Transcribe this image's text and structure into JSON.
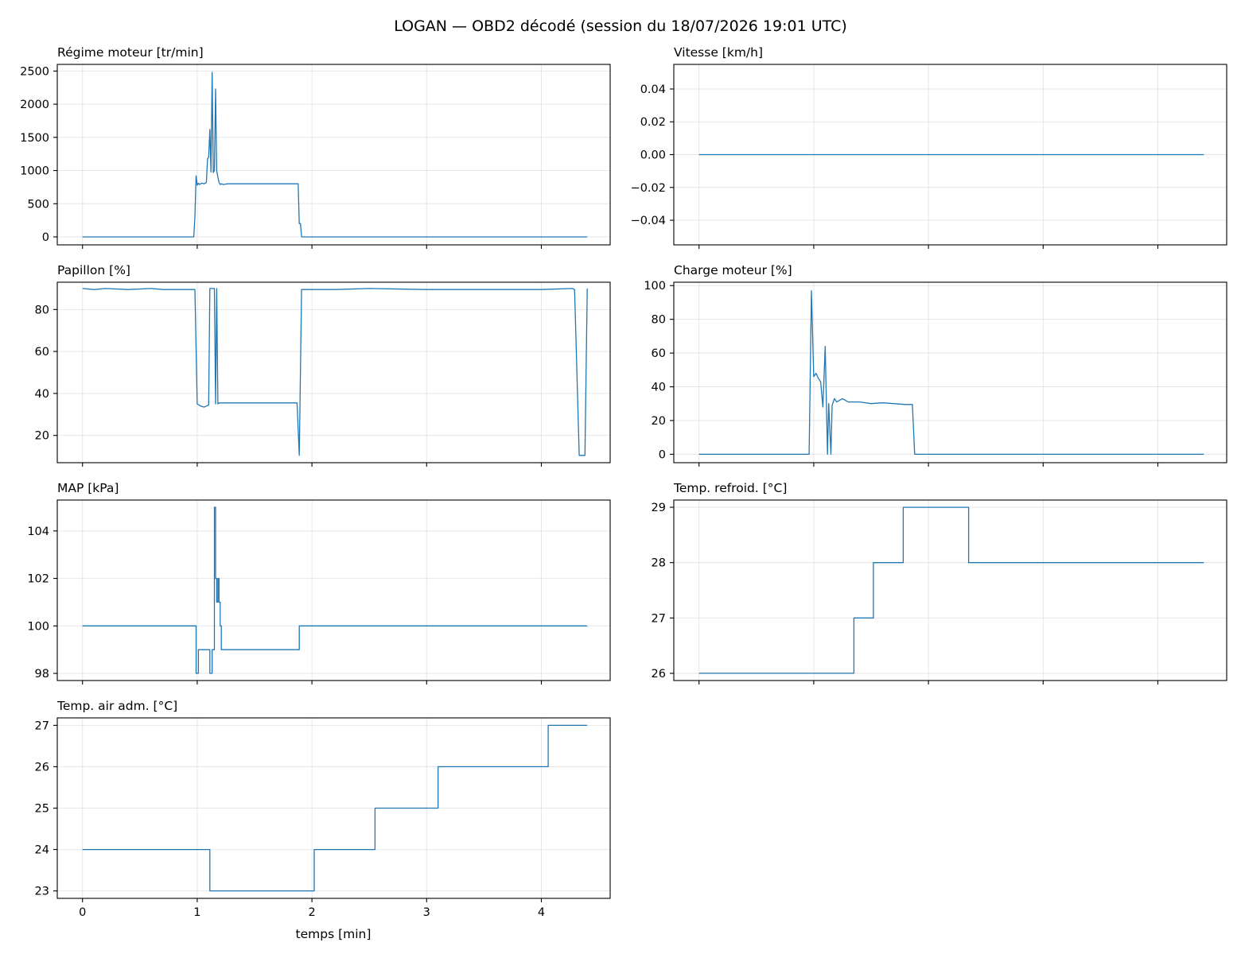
{
  "figure": {
    "title": "LOGAN — OBD2 décodé (session du 18/07/2026 19:01 UTC)",
    "xlabel": "temps [min]",
    "line_color": "#1f77b4"
  },
  "chart_data": [
    {
      "id": "rpm",
      "type": "line",
      "title": "Régime moteur [tr/min]",
      "xlim": [
        -0.22,
        4.6
      ],
      "ylim": [
        -120,
        2600
      ],
      "xticks": [
        0,
        1,
        2,
        3,
        4
      ],
      "show_x_ticklabels": false,
      "yticks": [
        0,
        500,
        1000,
        1500,
        2000,
        2500
      ],
      "x": [
        0,
        0.97,
        0.98,
        0.99,
        1.0,
        1.01,
        1.02,
        1.04,
        1.06,
        1.08,
        1.09,
        1.1,
        1.11,
        1.12,
        1.13,
        1.14,
        1.15,
        1.16,
        1.17,
        1.18,
        1.19,
        1.2,
        1.21,
        1.23,
        1.26,
        1.35,
        1.5,
        1.7,
        1.88,
        1.89,
        1.9,
        1.91,
        4.4
      ],
      "y": [
        0,
        0,
        300,
        920,
        780,
        810,
        790,
        810,
        800,
        820,
        1180,
        1200,
        1620,
        980,
        2480,
        970,
        1000,
        2230,
        1000,
        900,
        820,
        790,
        800,
        790,
        800,
        800,
        800,
        800,
        800,
        200,
        200,
        0,
        0
      ]
    },
    {
      "id": "speed",
      "type": "line",
      "title": "Vitesse [km/h]",
      "xlim": [
        -0.22,
        4.6
      ],
      "ylim": [
        -0.055,
        0.055
      ],
      "xticks": [
        0,
        1,
        2,
        3,
        4
      ],
      "show_x_ticklabels": false,
      "yticks": [
        -0.04,
        -0.02,
        0.0,
        0.02,
        0.04
      ],
      "ytick_labels": [
        "−0.04",
        "−0.02",
        "0.00",
        "0.02",
        "0.04"
      ],
      "x": [
        0,
        4.4
      ],
      "y": [
        0,
        0
      ]
    },
    {
      "id": "throttle",
      "type": "line",
      "title": "Papillon [%]",
      "xlim": [
        -0.22,
        4.6
      ],
      "ylim": [
        7,
        93
      ],
      "xticks": [
        0,
        1,
        2,
        3,
        4
      ],
      "show_x_ticklabels": false,
      "yticks": [
        20,
        40,
        60,
        80
      ],
      "x": [
        0,
        0.1,
        0.2,
        0.4,
        0.6,
        0.7,
        0.98,
        1.0,
        1.03,
        1.06,
        1.1,
        1.11,
        1.12,
        1.15,
        1.16,
        1.17,
        1.18,
        1.19,
        1.2,
        1.3,
        1.87,
        1.89,
        1.91,
        2.2,
        2.5,
        3.0,
        3.5,
        4.0,
        4.27,
        4.29,
        4.33,
        4.34,
        4.38,
        4.4
      ],
      "y": [
        90,
        89.5,
        90,
        89.5,
        90,
        89.5,
        89.5,
        35,
        34,
        33.5,
        34.5,
        90,
        90,
        90,
        35,
        90,
        35,
        35.5,
        35.5,
        35.5,
        35.5,
        10.5,
        89.5,
        89.5,
        90,
        89.5,
        89.5,
        89.5,
        90,
        89.5,
        10.5,
        10.5,
        10.5,
        90
      ]
    },
    {
      "id": "load",
      "type": "line",
      "title": "Charge moteur [%]",
      "xlim": [
        -0.22,
        4.6
      ],
      "ylim": [
        -5,
        102
      ],
      "xticks": [
        0,
        1,
        2,
        3,
        4
      ],
      "show_x_ticklabels": false,
      "yticks": [
        0,
        20,
        40,
        60,
        80,
        100
      ],
      "x": [
        0,
        0.96,
        0.98,
        1.0,
        1.02,
        1.04,
        1.06,
        1.08,
        1.1,
        1.12,
        1.13,
        1.15,
        1.16,
        1.18,
        1.2,
        1.25,
        1.3,
        1.4,
        1.5,
        1.6,
        1.7,
        1.8,
        1.86,
        1.88,
        4.4
      ],
      "y": [
        0,
        0,
        97,
        46,
        48,
        45,
        43,
        28,
        64,
        0,
        30,
        0,
        29,
        33,
        31,
        33,
        31,
        31,
        30,
        30.5,
        30,
        29.5,
        29.5,
        0,
        0
      ]
    },
    {
      "id": "map",
      "type": "line",
      "title": "MAP [kPa]",
      "xlim": [
        -0.22,
        4.6
      ],
      "ylim": [
        97.7,
        105.3
      ],
      "xticks": [
        0,
        1,
        2,
        3,
        4
      ],
      "show_x_ticklabels": false,
      "yticks": [
        98,
        100,
        102,
        104
      ],
      "step": true,
      "x": [
        0,
        0.99,
        1.0,
        1.01,
        1.11,
        1.13,
        1.15,
        1.16,
        1.17,
        1.18,
        1.19,
        1.2,
        1.21,
        1.22,
        1.89,
        4.4
      ],
      "y": [
        100,
        98,
        98,
        99,
        98,
        99,
        105,
        102,
        101,
        102,
        101,
        100,
        99,
        99,
        100,
        100
      ]
    },
    {
      "id": "coolant",
      "type": "line",
      "title": "Temp. refroid. [°C]",
      "xlim": [
        -0.22,
        4.6
      ],
      "ylim": [
        25.87,
        29.13
      ],
      "xticks": [
        0,
        1,
        2,
        3,
        4
      ],
      "show_x_ticklabels": false,
      "yticks": [
        26,
        27,
        28,
        29
      ],
      "step": true,
      "x": [
        0,
        1.35,
        1.52,
        1.78,
        2.35,
        4.4
      ],
      "y": [
        26,
        27,
        28,
        29,
        28,
        28
      ]
    },
    {
      "id": "intake",
      "type": "line",
      "title": "Temp. air adm. [°C]",
      "xlim": [
        -0.22,
        4.6
      ],
      "ylim": [
        22.82,
        27.18
      ],
      "xticks": [
        0,
        1,
        2,
        3,
        4
      ],
      "show_x_ticklabels": true,
      "yticks": [
        23,
        24,
        25,
        26,
        27
      ],
      "step": true,
      "x": [
        0,
        1.11,
        2.02,
        2.55,
        3.1,
        4.06,
        4.4
      ],
      "y": [
        24,
        23,
        24,
        25,
        26,
        27,
        27
      ]
    }
  ]
}
